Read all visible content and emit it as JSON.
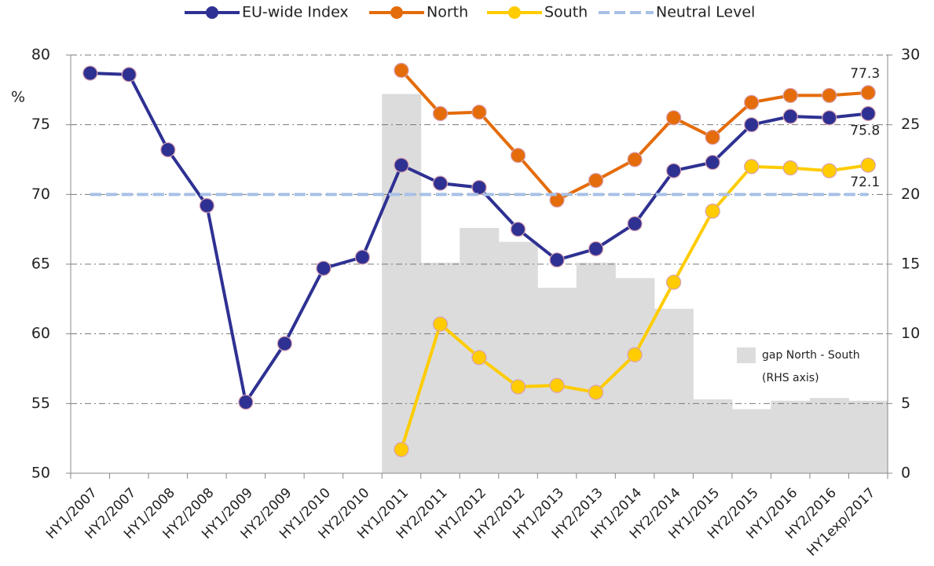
{
  "chart_data": {
    "type": "line",
    "y_label": "%",
    "categories": [
      "HY1/2007",
      "HY2/2007",
      "HY1/2008",
      "HY2/2008",
      "HY1/2009",
      "HY2/2009",
      "HY1/2010",
      "HY2/2010",
      "HY1/2011",
      "HY2/2011",
      "HY1/2012",
      "HY2/2012",
      "HY1/2013",
      "HY2/2013",
      "HY1/2014",
      "HY2/2014",
      "HY1/2015",
      "HY2/2015",
      "HY1/2016",
      "HY2/2016",
      "HY1exp/2017"
    ],
    "ylim": [
      50,
      80
    ],
    "yticks": [
      50,
      55,
      60,
      65,
      70,
      75,
      80
    ],
    "y2lim": [
      0,
      30
    ],
    "y2ticks": [
      0,
      5,
      10,
      15,
      20,
      25,
      30
    ],
    "grid": true,
    "legend": "top",
    "series": [
      {
        "name": "gap North - South",
        "note": "(RHS axis)",
        "type": "bar",
        "axis": "y2",
        "color": "#dcdcdc",
        "values": [
          null,
          null,
          null,
          null,
          null,
          null,
          null,
          null,
          27.2,
          15.1,
          17.6,
          16.6,
          13.3,
          15.1,
          14.0,
          11.8,
          5.3,
          4.6,
          5.2,
          5.4,
          5.2
        ]
      },
      {
        "name": "EU-wide Index",
        "type": "line",
        "color": "#2e3192",
        "values": [
          78.7,
          78.6,
          73.2,
          69.2,
          55.1,
          59.3,
          64.7,
          65.5,
          72.1,
          70.8,
          70.5,
          67.5,
          65.3,
          66.1,
          67.9,
          71.7,
          72.3,
          75.0,
          75.6,
          75.5,
          75.8
        ],
        "value_labels": [
          null,
          null,
          null,
          null,
          null,
          null,
          null,
          null,
          null,
          null,
          null,
          null,
          null,
          null,
          null,
          null,
          null,
          null,
          null,
          null,
          "75.8"
        ]
      },
      {
        "name": "North",
        "type": "line",
        "color": "#e46c0a",
        "values": [
          null,
          null,
          null,
          null,
          null,
          null,
          null,
          null,
          78.9,
          75.8,
          75.9,
          72.8,
          69.6,
          71.0,
          72.5,
          75.5,
          74.1,
          76.6,
          77.1,
          77.1,
          77.3
        ],
        "value_labels": [
          null,
          null,
          null,
          null,
          null,
          null,
          null,
          null,
          null,
          null,
          null,
          null,
          null,
          null,
          null,
          null,
          null,
          null,
          null,
          null,
          "77.3"
        ]
      },
      {
        "name": "South",
        "type": "line",
        "color": "#ffcc00",
        "values": [
          null,
          null,
          null,
          null,
          null,
          null,
          null,
          null,
          51.7,
          60.7,
          58.3,
          56.2,
          56.3,
          55.8,
          58.5,
          63.7,
          68.8,
          72.0,
          71.9,
          71.7,
          72.1
        ],
        "value_labels": [
          null,
          null,
          null,
          null,
          null,
          null,
          null,
          null,
          null,
          null,
          null,
          null,
          null,
          null,
          null,
          null,
          null,
          null,
          null,
          null,
          "72.1"
        ]
      },
      {
        "name": "Neutral Level",
        "type": "dashed",
        "color": "#a7c0e6",
        "values": [
          70,
          70,
          70,
          70,
          70,
          70,
          70,
          70,
          70,
          70,
          70,
          70,
          70,
          70,
          70,
          70,
          70,
          70,
          70,
          70,
          70
        ]
      }
    ]
  }
}
